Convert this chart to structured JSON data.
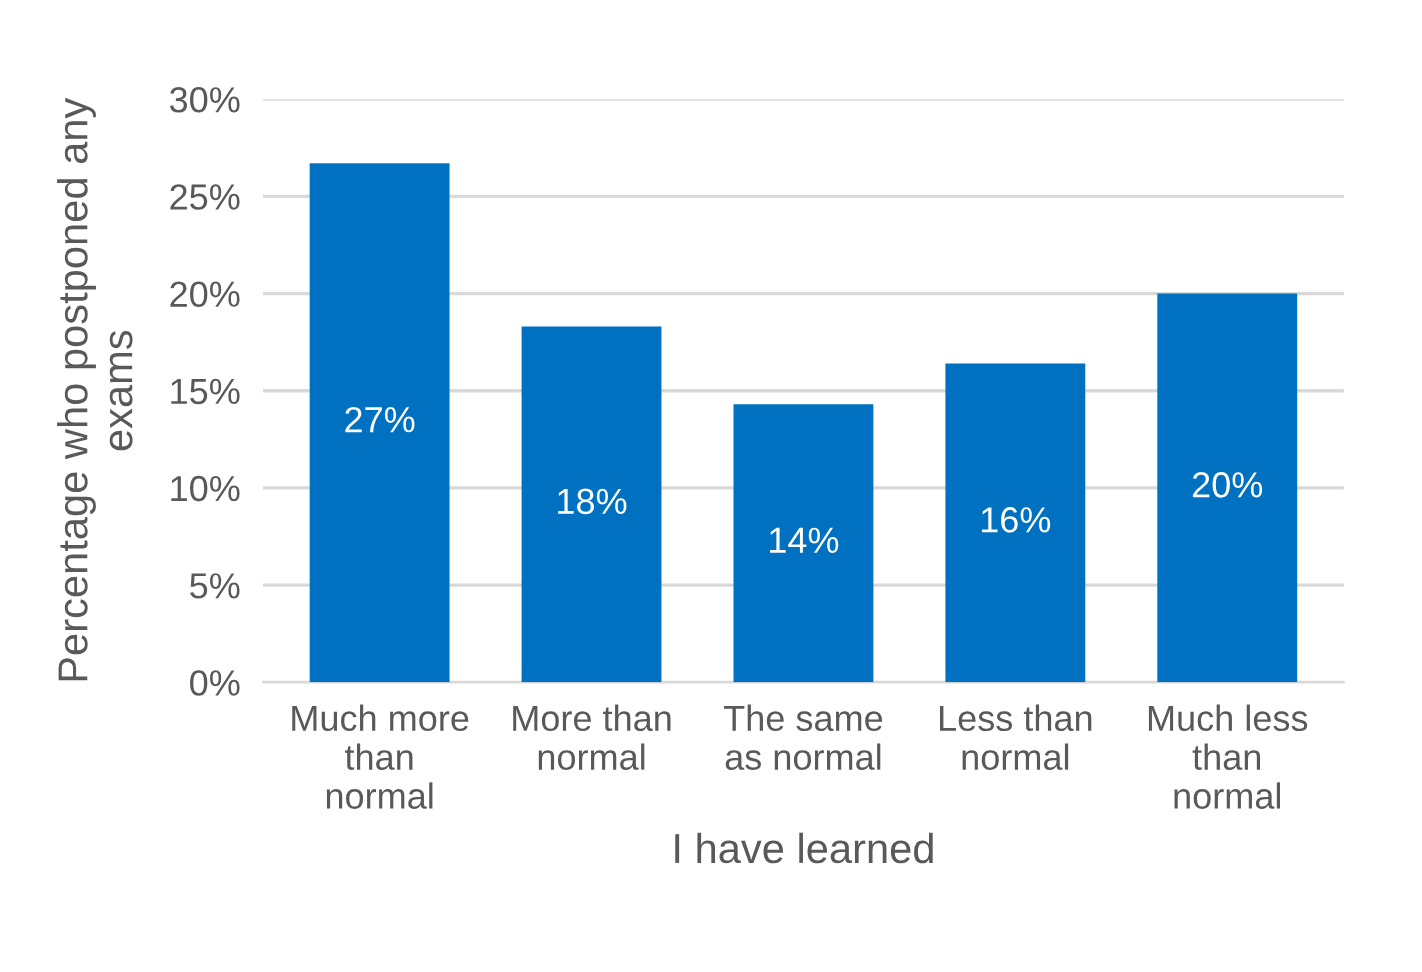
{
  "chart_data": {
    "type": "bar",
    "xlabel": "I have learned",
    "ylabel": "Percentage who postponed any exams",
    "categories": [
      "Much more than normal",
      "More than normal",
      "The same as normal",
      "Less than normal",
      "Much less than normal"
    ],
    "values": [
      26.7,
      18.3,
      14.3,
      16.4,
      20.0
    ],
    "value_labels": [
      "27%",
      "18%",
      "14%",
      "16%",
      "20%"
    ],
    "color": "#0070c0",
    "ylim": [
      0,
      30
    ],
    "yticks": [
      {
        "value": 0,
        "label": "0%"
      },
      {
        "value": 5,
        "label": "5%"
      },
      {
        "value": 10,
        "label": "10%"
      },
      {
        "value": 15,
        "label": "15%"
      },
      {
        "value": 20,
        "label": "20%"
      },
      {
        "value": 25,
        "label": "25%"
      },
      {
        "value": 30,
        "label": "30%"
      }
    ],
    "grid": "y"
  }
}
